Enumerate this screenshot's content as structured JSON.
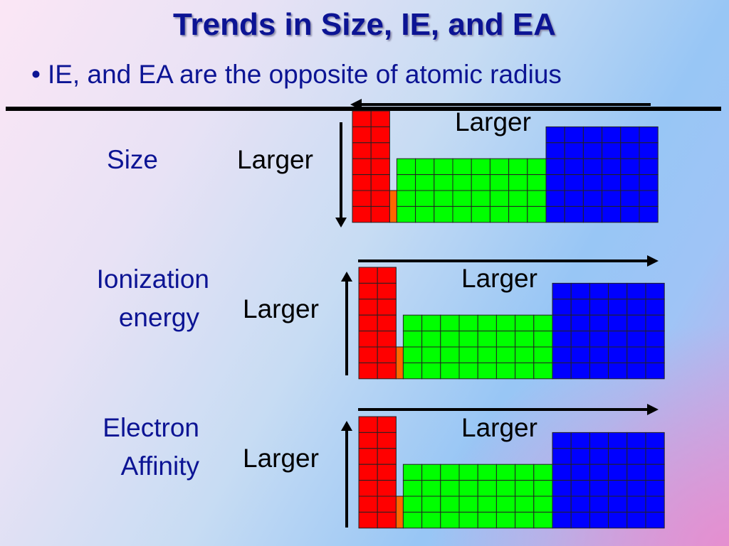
{
  "slide": {
    "title": "Trends in Size, IE, and EA",
    "bullet": "IE, and EA are the opposite of atomic radius"
  },
  "rows": [
    {
      "label_lines": [
        "Size"
      ],
      "vertical_label": "Larger",
      "horizontal_label": "Larger",
      "vertical_arrow": "down",
      "horizontal_arrow": "left"
    },
    {
      "label_lines": [
        "Ionization",
        "energy"
      ],
      "vertical_label": "Larger",
      "horizontal_label": "Larger",
      "vertical_arrow": "up",
      "horizontal_arrow": "right"
    },
    {
      "label_lines": [
        "Electron",
        "Affinity"
      ],
      "vertical_label": "Larger",
      "horizontal_label": "Larger",
      "vertical_arrow": "up",
      "horizontal_arrow": "right"
    }
  ],
  "colors": {
    "s_block": "#ff0000",
    "d_block": "#00ff00",
    "p_block": "#0000ff",
    "f_marker": "#ff6600",
    "text": "#0c1494"
  }
}
